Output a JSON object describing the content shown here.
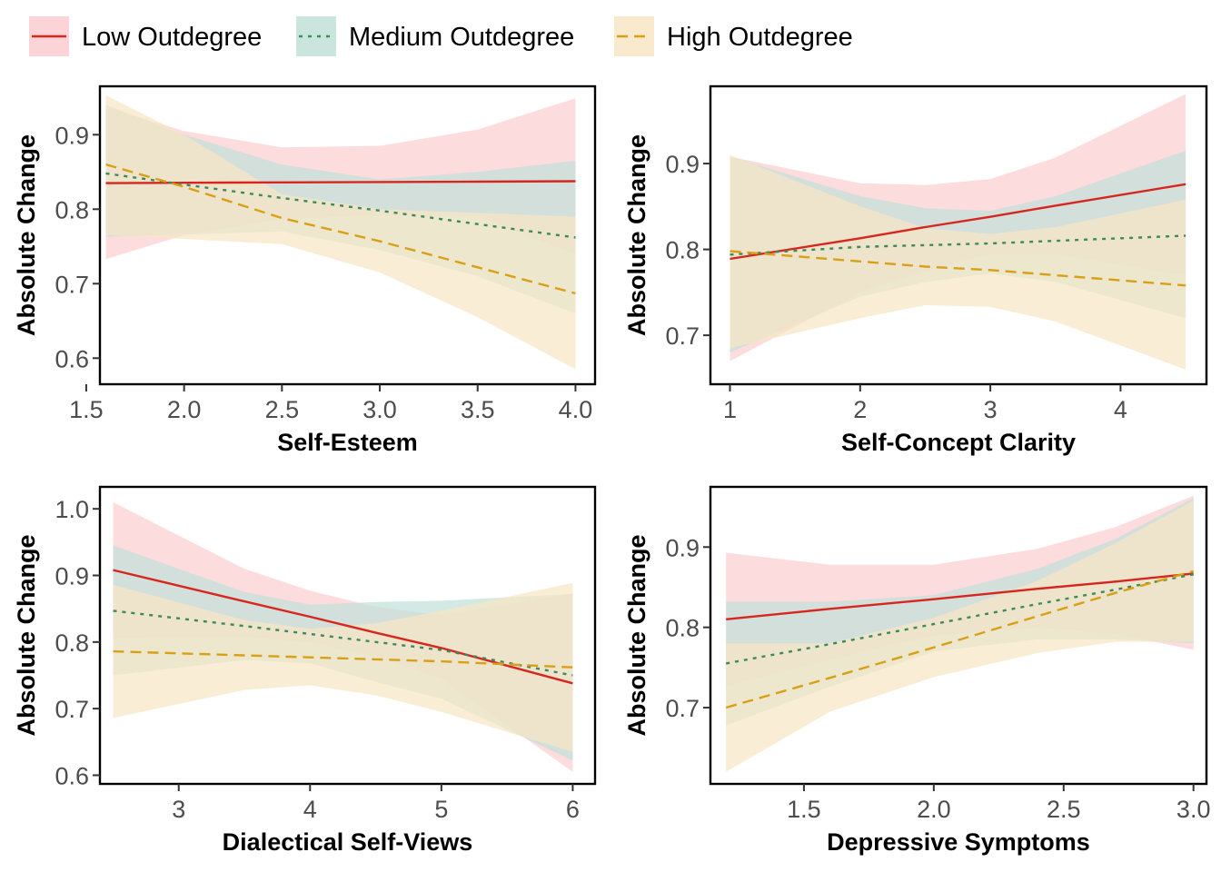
{
  "legend": {
    "items": [
      {
        "label": "Low Outdegree",
        "color": "#D7261E",
        "fill": "#FCCDD0",
        "dash": "none"
      },
      {
        "label": "Medium Outdegree",
        "color": "#3C8A5A",
        "fill": "#BFE0D8",
        "dash": "4,6"
      },
      {
        "label": "High Outdegree",
        "color": "#D9A016",
        "fill": "#F8E6C4",
        "dash": "12,7"
      }
    ]
  },
  "chart_data": [
    {
      "type": "line",
      "xlabel": "Self-Esteem",
      "ylabel": "Absolute Change",
      "xlim": [
        1.57,
        4.1
      ],
      "ylim": [
        0.565,
        0.965
      ],
      "xticks": [
        1.5,
        2.0,
        2.5,
        3.0,
        3.5,
        4.0
      ],
      "xtick_labels": [
        "1.5",
        "2.0",
        "2.5",
        "3.0",
        "3.5",
        "4.0"
      ],
      "yticks": [
        0.6,
        0.7,
        0.8,
        0.9
      ],
      "ytick_labels": [
        "0.6",
        "0.7",
        "0.8",
        "0.9"
      ],
      "x": [
        1.6,
        2.0,
        2.5,
        3.0,
        3.5,
        4.0
      ],
      "series": [
        {
          "name": "Low Outdegree",
          "values": [
            0.835,
            0.8355,
            0.836,
            0.8365,
            0.837,
            0.8375
          ],
          "lower": [
            0.733,
            0.765,
            0.787,
            0.792,
            0.79,
            0.74
          ],
          "upper": [
            0.937,
            0.905,
            0.883,
            0.885,
            0.907,
            0.949
          ]
        },
        {
          "name": "Medium Outdegree",
          "values": [
            0.848,
            0.833,
            0.815,
            0.798,
            0.78,
            0.762
          ],
          "lower": [
            0.763,
            0.766,
            0.77,
            0.745,
            0.71,
            0.66
          ],
          "upper": [
            0.94,
            0.9,
            0.86,
            0.84,
            0.85,
            0.865
          ]
        },
        {
          "name": "High Outdegree",
          "values": [
            0.86,
            0.83,
            0.788,
            0.757,
            0.722,
            0.687
          ],
          "lower": [
            0.765,
            0.76,
            0.753,
            0.715,
            0.655,
            0.585
          ],
          "upper": [
            0.953,
            0.9,
            0.82,
            0.8,
            0.795,
            0.79
          ]
        }
      ]
    },
    {
      "type": "line",
      "xlabel": "Self-Concept Clarity",
      "ylabel": "Absolute Change",
      "xlim": [
        0.85,
        4.66
      ],
      "ylim": [
        0.643,
        0.99
      ],
      "xticks": [
        1,
        2,
        3,
        4
      ],
      "xtick_labels": [
        "1",
        "2",
        "3",
        "4"
      ],
      "yticks": [
        0.7,
        0.8,
        0.9
      ],
      "ytick_labels": [
        "0.7",
        "0.8",
        "0.9"
      ],
      "x": [
        1.0,
        2.0,
        2.5,
        3.0,
        3.5,
        4.5
      ],
      "series": [
        {
          "name": "Low Outdegree",
          "values": [
            0.789,
            0.813,
            0.826,
            0.838,
            0.851,
            0.876
          ],
          "lower": [
            0.67,
            0.75,
            0.775,
            0.795,
            0.795,
            0.77
          ],
          "upper": [
            0.908,
            0.877,
            0.875,
            0.882,
            0.907,
            0.981
          ]
        },
        {
          "name": "Medium Outdegree",
          "values": [
            0.794,
            0.803,
            0.805,
            0.807,
            0.81,
            0.816
          ],
          "lower": [
            0.68,
            0.745,
            0.762,
            0.772,
            0.762,
            0.72
          ],
          "upper": [
            0.908,
            0.862,
            0.848,
            0.845,
            0.862,
            0.915
          ]
        },
        {
          "name": "High Outdegree",
          "values": [
            0.798,
            0.786,
            0.78,
            0.776,
            0.77,
            0.758
          ],
          "lower": [
            0.685,
            0.72,
            0.735,
            0.733,
            0.716,
            0.66
          ],
          "upper": [
            0.91,
            0.85,
            0.825,
            0.818,
            0.826,
            0.858
          ]
        }
      ]
    },
    {
      "type": "line",
      "xlabel": "Dialectical Self-Views",
      "ylabel": "Absolute Change",
      "xlim": [
        2.4,
        6.17
      ],
      "ylim": [
        0.587,
        1.033
      ],
      "xticks": [
        3,
        4,
        5,
        6
      ],
      "xtick_labels": [
        "3",
        "4",
        "5",
        "6"
      ],
      "yticks": [
        0.6,
        0.7,
        0.8,
        0.9,
        1.0
      ],
      "ytick_labels": [
        "0.6",
        "0.7",
        "0.8",
        "0.9",
        "1.0"
      ],
      "x": [
        2.5,
        3.5,
        4.0,
        4.5,
        5.0,
        6.0
      ],
      "series": [
        {
          "name": "Low Outdegree",
          "values": [
            0.908,
            0.861,
            0.838,
            0.814,
            0.791,
            0.738
          ],
          "lower": [
            0.806,
            0.808,
            0.8,
            0.778,
            0.745,
            0.605
          ],
          "upper": [
            1.01,
            0.91,
            0.877,
            0.853,
            0.84,
            0.873
          ]
        },
        {
          "name": "Medium Outdegree",
          "values": [
            0.847,
            0.824,
            0.812,
            0.8,
            0.788,
            0.75
          ],
          "lower": [
            0.75,
            0.773,
            0.768,
            0.74,
            0.715,
            0.622
          ],
          "upper": [
            0.945,
            0.875,
            0.856,
            0.86,
            0.862,
            0.872
          ]
        },
        {
          "name": "High Outdegree",
          "values": [
            0.786,
            0.78,
            0.777,
            0.774,
            0.771,
            0.762
          ],
          "lower": [
            0.686,
            0.728,
            0.735,
            0.72,
            0.695,
            0.635
          ],
          "upper": [
            0.886,
            0.833,
            0.82,
            0.828,
            0.847,
            0.889
          ]
        }
      ]
    },
    {
      "type": "line",
      "xlabel": "Depressive Symptoms",
      "ylabel": "Absolute Change",
      "xlim": [
        1.14,
        3.05
      ],
      "ylim": [
        0.605,
        0.975
      ],
      "xticks": [
        1.5,
        2.0,
        2.5,
        3.0
      ],
      "xtick_labels": [
        "1.5",
        "2.0",
        "2.5",
        "3.0"
      ],
      "yticks": [
        0.7,
        0.8,
        0.9
      ],
      "ytick_labels": [
        "0.7",
        "0.8",
        "0.9"
      ],
      "x": [
        1.2,
        1.6,
        2.0,
        2.4,
        2.7,
        3.0
      ],
      "series": [
        {
          "name": "Low Outdegree",
          "values": [
            0.81,
            0.823,
            0.835,
            0.848,
            0.857,
            0.867
          ],
          "lower": [
            0.727,
            0.76,
            0.79,
            0.8,
            0.792,
            0.772
          ],
          "upper": [
            0.893,
            0.878,
            0.878,
            0.898,
            0.925,
            0.964
          ]
        },
        {
          "name": "Medium Outdegree",
          "values": [
            0.755,
            0.779,
            0.804,
            0.829,
            0.847,
            0.866
          ],
          "lower": [
            0.678,
            0.726,
            0.77,
            0.785,
            0.785,
            0.78
          ],
          "upper": [
            0.832,
            0.832,
            0.84,
            0.873,
            0.91,
            0.961
          ]
        },
        {
          "name": "High Outdegree",
          "values": [
            0.7,
            0.737,
            0.775,
            0.814,
            0.843,
            0.87
          ],
          "lower": [
            0.62,
            0.695,
            0.738,
            0.768,
            0.782,
            0.782
          ],
          "upper": [
            0.78,
            0.78,
            0.812,
            0.858,
            0.905,
            0.958
          ]
        }
      ]
    }
  ]
}
